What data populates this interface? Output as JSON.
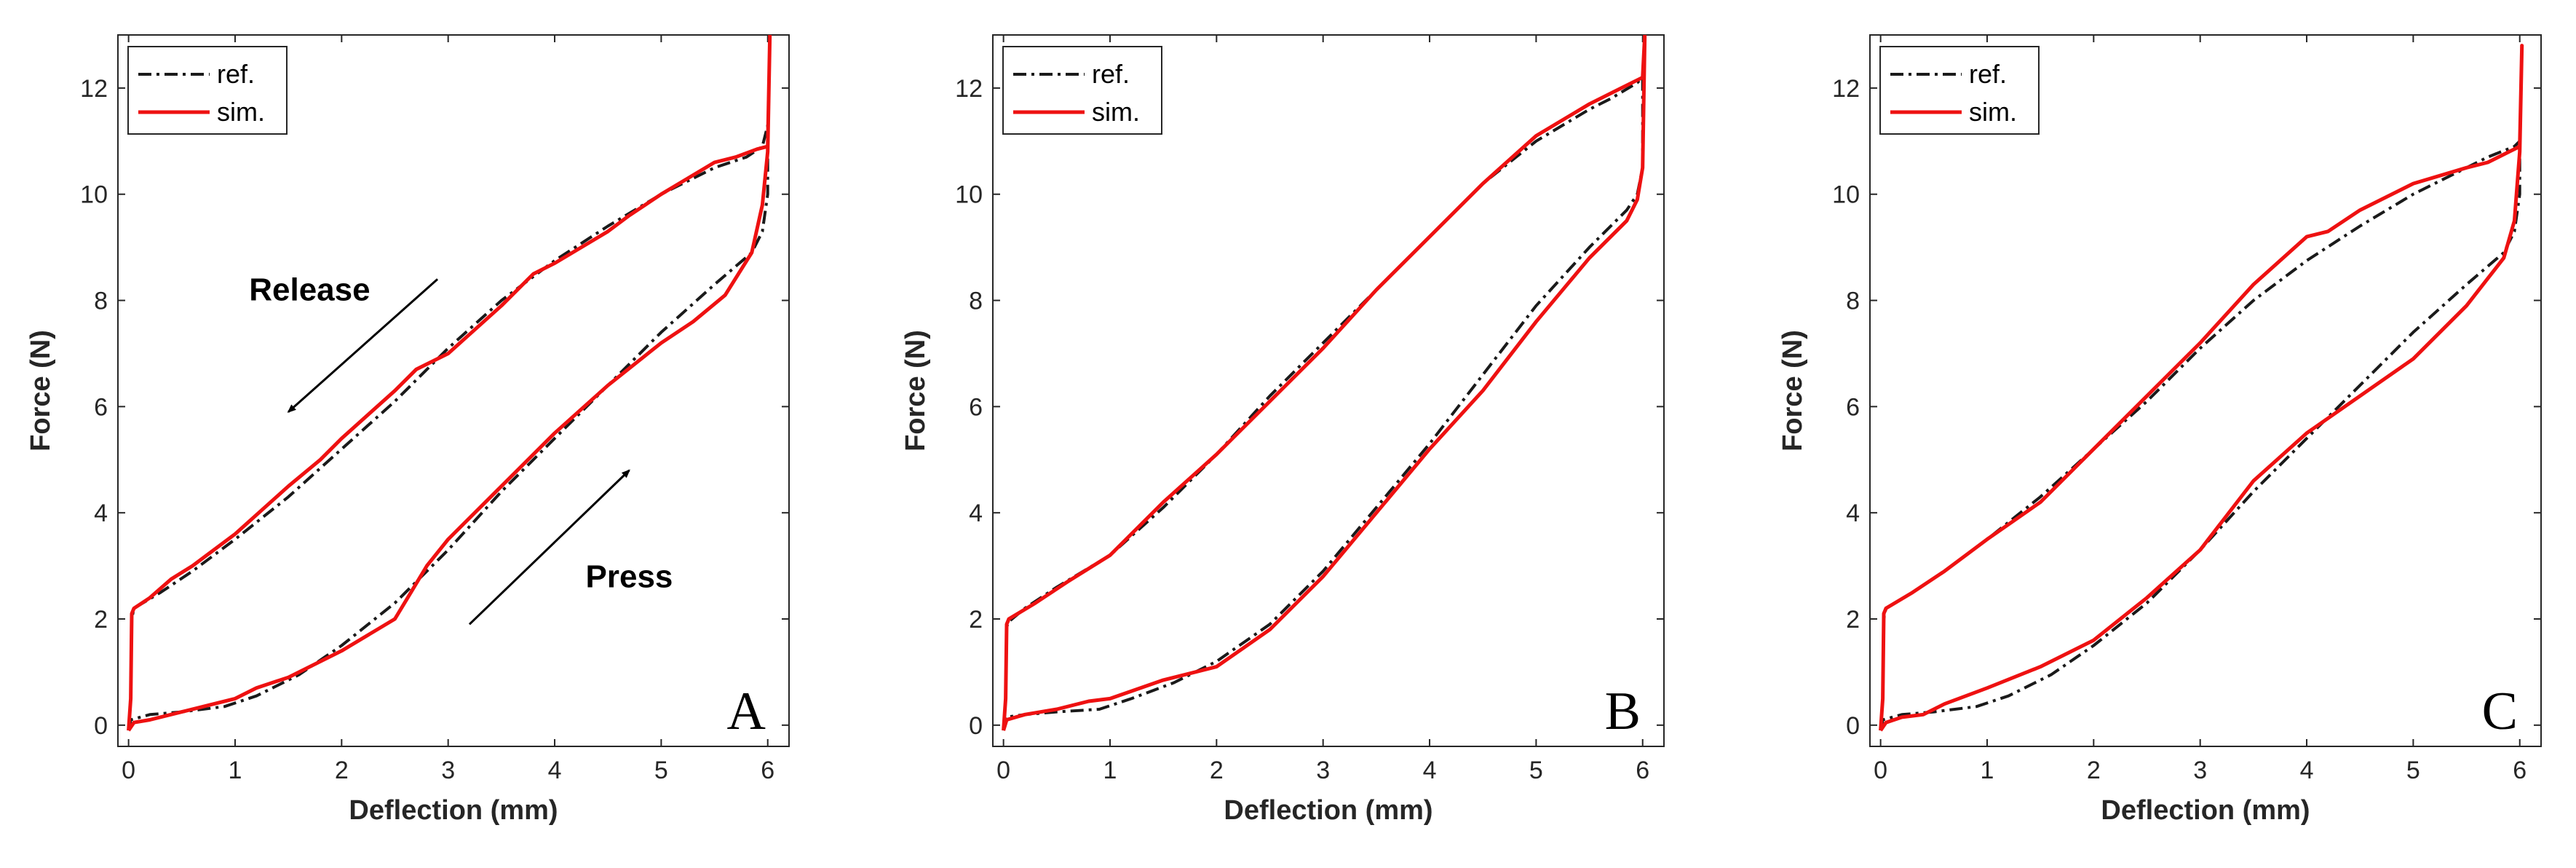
{
  "colors": {
    "ref": "#1a1a1a",
    "sim": "#ee1111",
    "axis": "#262626"
  },
  "chart_data": [
    {
      "type": "line",
      "panel_label": "A",
      "xlabel": "Deflection (mm)",
      "ylabel": "Force (N)",
      "xlim": [
        -0.1,
        6.2
      ],
      "ylim": [
        -0.4,
        13
      ],
      "xticks": [
        "0",
        "1",
        "2",
        "3",
        "4",
        "5",
        "6"
      ],
      "yticks": [
        "0",
        "2",
        "4",
        "6",
        "8",
        "10",
        "12"
      ],
      "legend": [
        "ref.",
        "sim."
      ],
      "annotations": [
        {
          "text": "Release",
          "x": 1.7,
          "y": 8.0,
          "arrow_from": [
            2.9,
            8.4
          ],
          "arrow_to": [
            1.5,
            5.9
          ]
        },
        {
          "text": "Press",
          "x": 4.7,
          "y": 2.6,
          "arrow_from": [
            3.2,
            1.9
          ],
          "arrow_to": [
            4.7,
            4.8
          ]
        }
      ],
      "series": [
        {
          "name": "ref.",
          "x": [
            0,
            0.02,
            0.2,
            0.5,
            0.9,
            1.2,
            1.6,
            2.0,
            2.5,
            3.0,
            3.5,
            4.0,
            4.5,
            5.0,
            5.5,
            5.85,
            5.95,
            6.0,
            6.0,
            5.95,
            5.8,
            5.5,
            5.0,
            4.5,
            4.0,
            3.5,
            3.0,
            2.5,
            2.0,
            1.5,
            1.0,
            0.6,
            0.3,
            0.05,
            0.03,
            0.02,
            0
          ],
          "y": [
            -0.1,
            0.1,
            0.2,
            0.25,
            0.35,
            0.55,
            0.95,
            1.5,
            2.3,
            3.3,
            4.4,
            5.4,
            6.4,
            7.4,
            8.3,
            8.9,
            9.3,
            10.0,
            11.3,
            10.9,
            10.7,
            10.5,
            10.0,
            9.4,
            8.75,
            8.0,
            7.1,
            6.1,
            5.2,
            4.3,
            3.5,
            2.9,
            2.5,
            2.2,
            2.0,
            0.5,
            -0.1
          ]
        },
        {
          "name": "sim.",
          "x": [
            0,
            0.05,
            0.2,
            0.5,
            0.8,
            1.0,
            1.2,
            1.5,
            2.0,
            2.5,
            2.65,
            2.8,
            3.0,
            3.5,
            4.0,
            4.5,
            5.0,
            5.3,
            5.6,
            5.85,
            5.95,
            6.0,
            6.02,
            6.0,
            5.9,
            5.7,
            5.5,
            5.0,
            4.7,
            4.5,
            4.0,
            3.8,
            3.5,
            3.0,
            2.7,
            2.5,
            2.0,
            1.8,
            1.5,
            1.0,
            0.6,
            0.4,
            0.2,
            0.05,
            0.03,
            0.02,
            0
          ],
          "y": [
            -0.1,
            0.05,
            0.1,
            0.25,
            0.4,
            0.5,
            0.7,
            0.9,
            1.4,
            2.0,
            2.5,
            3.0,
            3.5,
            4.5,
            5.5,
            6.4,
            7.2,
            7.6,
            8.1,
            8.9,
            9.8,
            10.8,
            13.0,
            10.9,
            10.85,
            10.7,
            10.6,
            10.0,
            9.6,
            9.3,
            8.7,
            8.5,
            7.9,
            7.0,
            6.7,
            6.3,
            5.4,
            5.0,
            4.5,
            3.6,
            3.0,
            2.75,
            2.4,
            2.2,
            2.1,
            0.5,
            -0.1
          ]
        }
      ]
    },
    {
      "type": "line",
      "panel_label": "B",
      "xlabel": "Deflection (mm)",
      "ylabel": "Force (N)",
      "xlim": [
        -0.1,
        6.2
      ],
      "ylim": [
        -0.4,
        13
      ],
      "xticks": [
        "0",
        "1",
        "2",
        "3",
        "4",
        "5",
        "6"
      ],
      "yticks": [
        "0",
        "2",
        "4",
        "6",
        "8",
        "10",
        "12"
      ],
      "legend": [
        "ref.",
        "sim."
      ],
      "annotations": [],
      "series": [
        {
          "name": "ref.",
          "x": [
            0,
            0.02,
            0.2,
            0.5,
            0.9,
            1.2,
            1.6,
            2.0,
            2.5,
            3.0,
            3.5,
            4.0,
            4.5,
            5.0,
            5.5,
            5.85,
            5.95,
            6.0,
            6.0,
            5.95,
            5.7,
            5.5,
            5.0,
            4.5,
            4.0,
            3.5,
            3.0,
            2.5,
            2.0,
            1.5,
            1.0,
            0.5,
            0.2,
            0.05,
            0.03,
            0.02,
            0
          ],
          "y": [
            -0.1,
            0.15,
            0.2,
            0.25,
            0.3,
            0.5,
            0.8,
            1.2,
            1.9,
            2.9,
            4.1,
            5.3,
            6.6,
            7.9,
            9.0,
            9.7,
            10.0,
            10.5,
            12.2,
            12.1,
            11.8,
            11.6,
            11.0,
            10.2,
            9.2,
            8.2,
            7.2,
            6.2,
            5.1,
            4.1,
            3.2,
            2.6,
            2.2,
            1.95,
            1.85,
            0.5,
            -0.1
          ]
        },
        {
          "name": "sim.",
          "x": [
            0,
            0.03,
            0.2,
            0.5,
            0.8,
            1.0,
            1.5,
            2.0,
            2.5,
            3.0,
            3.5,
            4.0,
            4.5,
            5.0,
            5.5,
            5.85,
            5.95,
            6.0,
            6.02,
            6.0,
            5.8,
            5.5,
            5.0,
            4.5,
            4.0,
            3.5,
            3.0,
            2.5,
            2.0,
            1.5,
            1.0,
            0.6,
            0.3,
            0.05,
            0.03,
            0.02,
            0
          ],
          "y": [
            -0.1,
            0.1,
            0.2,
            0.3,
            0.45,
            0.5,
            0.85,
            1.1,
            1.8,
            2.8,
            4.0,
            5.2,
            6.3,
            7.6,
            8.8,
            9.5,
            9.9,
            10.5,
            13.0,
            12.2,
            12.0,
            11.7,
            11.1,
            10.2,
            9.2,
            8.2,
            7.1,
            6.1,
            5.1,
            4.2,
            3.2,
            2.7,
            2.3,
            2.0,
            1.9,
            0.5,
            -0.1
          ]
        }
      ]
    },
    {
      "type": "line",
      "panel_label": "C",
      "xlabel": "Deflection (mm)",
      "ylabel": "Force (N)",
      "xlim": [
        -0.1,
        6.2
      ],
      "ylim": [
        -0.4,
        13
      ],
      "xticks": [
        "0",
        "1",
        "2",
        "3",
        "4",
        "5",
        "6"
      ],
      "yticks": [
        "0",
        "2",
        "4",
        "6",
        "8",
        "10",
        "12"
      ],
      "legend": [
        "ref.",
        "sim."
      ],
      "annotations": [],
      "series": [
        {
          "name": "ref.",
          "x": [
            0,
            0.02,
            0.2,
            0.5,
            0.9,
            1.2,
            1.6,
            2.0,
            2.5,
            3.0,
            3.5,
            4.0,
            4.5,
            5.0,
            5.5,
            5.85,
            5.95,
            6.0,
            6.0,
            5.95,
            5.7,
            5.5,
            5.0,
            4.5,
            4.0,
            3.5,
            3.0,
            2.5,
            2.0,
            1.5,
            1.0,
            0.6,
            0.3,
            0.05,
            0.03,
            0.02,
            0
          ],
          "y": [
            -0.1,
            0.1,
            0.2,
            0.25,
            0.35,
            0.55,
            0.95,
            1.5,
            2.3,
            3.3,
            4.4,
            5.4,
            6.4,
            7.4,
            8.3,
            8.9,
            9.3,
            10.0,
            11.0,
            10.9,
            10.7,
            10.5,
            10.0,
            9.4,
            8.75,
            8.0,
            7.1,
            6.1,
            5.2,
            4.3,
            3.5,
            2.9,
            2.5,
            2.2,
            2.0,
            0.5,
            -0.1
          ]
        },
        {
          "name": "sim.",
          "x": [
            0,
            0.05,
            0.2,
            0.4,
            0.6,
            1.0,
            1.5,
            2.0,
            2.5,
            3.0,
            3.5,
            4.0,
            4.5,
            5.0,
            5.5,
            5.85,
            5.95,
            6.0,
            6.02,
            6.0,
            5.9,
            5.7,
            5.5,
            5.0,
            4.5,
            4.2,
            4.0,
            3.5,
            3.0,
            2.5,
            2.0,
            1.5,
            1.0,
            0.6,
            0.3,
            0.05,
            0.03,
            0.02,
            0
          ],
          "y": [
            -0.1,
            0.05,
            0.15,
            0.2,
            0.4,
            0.7,
            1.1,
            1.6,
            2.4,
            3.3,
            4.6,
            5.5,
            6.2,
            6.9,
            7.9,
            8.8,
            9.5,
            10.8,
            12.8,
            10.9,
            10.8,
            10.6,
            10.5,
            10.2,
            9.7,
            9.3,
            9.2,
            8.3,
            7.2,
            6.2,
            5.2,
            4.2,
            3.5,
            2.9,
            2.5,
            2.2,
            2.1,
            0.5,
            -0.1
          ]
        }
      ]
    }
  ]
}
